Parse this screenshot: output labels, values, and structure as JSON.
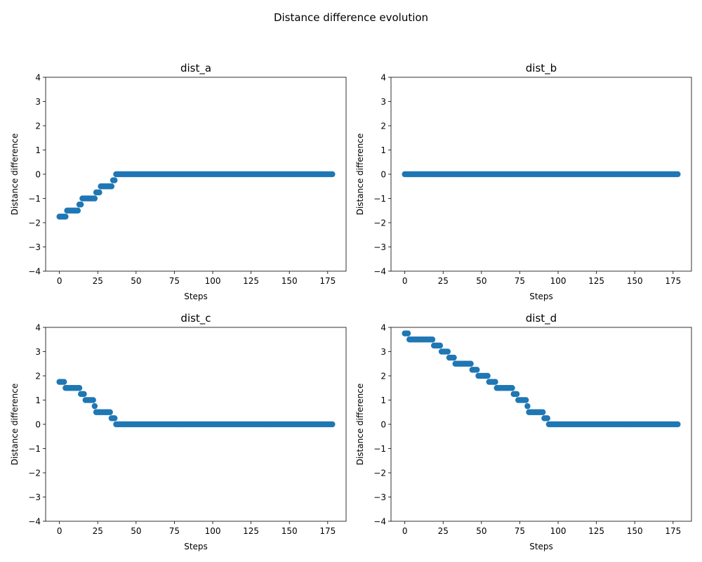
{
  "figure": {
    "suptitle": "Distance difference evolution"
  },
  "style": {
    "marker_color": "#1f77b4",
    "axes_color": "#000000",
    "background": "#ffffff"
  },
  "chart_data": [
    {
      "type": "scatter",
      "title": "dist_a",
      "xlabel": "Steps",
      "ylabel": "Distance difference",
      "xlim": [
        -9,
        187
      ],
      "ylim": [
        -4,
        4
      ],
      "xticks": [
        0,
        25,
        50,
        75,
        100,
        125,
        150,
        175
      ],
      "yticks": [
        -4,
        -3,
        -2,
        -1,
        0,
        1,
        2,
        3,
        4
      ],
      "grid": false,
      "x_range": [
        0,
        178
      ],
      "segments": [
        {
          "from": 0,
          "to": 4,
          "y": -1.75
        },
        {
          "from": 5,
          "to": 12,
          "y": -1.5
        },
        {
          "from": 13,
          "to": 14,
          "y": -1.25
        },
        {
          "from": 15,
          "to": 23,
          "y": -1.0
        },
        {
          "from": 24,
          "to": 26,
          "y": -0.75
        },
        {
          "from": 27,
          "to": 34,
          "y": -0.5
        },
        {
          "from": 35,
          "to": 36,
          "y": -0.25
        },
        {
          "from": 37,
          "to": 178,
          "y": 0.0
        }
      ]
    },
    {
      "type": "scatter",
      "title": "dist_b",
      "xlabel": "Steps",
      "ylabel": "Distance difference",
      "xlim": [
        -9,
        187
      ],
      "ylim": [
        -4,
        4
      ],
      "xticks": [
        0,
        25,
        50,
        75,
        100,
        125,
        150,
        175
      ],
      "yticks": [
        -4,
        -3,
        -2,
        -1,
        0,
        1,
        2,
        3,
        4
      ],
      "grid": false,
      "x_range": [
        0,
        178
      ],
      "segments": [
        {
          "from": 0,
          "to": 178,
          "y": 0.0
        }
      ]
    },
    {
      "type": "scatter",
      "title": "dist_c",
      "xlabel": "Steps",
      "ylabel": "Distance difference",
      "xlim": [
        -9,
        187
      ],
      "ylim": [
        -4,
        4
      ],
      "xticks": [
        0,
        25,
        50,
        75,
        100,
        125,
        150,
        175
      ],
      "yticks": [
        -4,
        -3,
        -2,
        -1,
        0,
        1,
        2,
        3,
        4
      ],
      "grid": false,
      "x_range": [
        0,
        178
      ],
      "segments": [
        {
          "from": 0,
          "to": 3,
          "y": 1.75
        },
        {
          "from": 4,
          "to": 13,
          "y": 1.5
        },
        {
          "from": 14,
          "to": 16,
          "y": 1.25
        },
        {
          "from": 17,
          "to": 22,
          "y": 1.0
        },
        {
          "from": 23,
          "to": 23,
          "y": 0.75
        },
        {
          "from": 24,
          "to": 33,
          "y": 0.5
        },
        {
          "from": 34,
          "to": 36,
          "y": 0.25
        },
        {
          "from": 37,
          "to": 178,
          "y": 0.0
        }
      ]
    },
    {
      "type": "scatter",
      "title": "dist_d",
      "xlabel": "Steps",
      "ylabel": "Distance difference",
      "xlim": [
        -9,
        187
      ],
      "ylim": [
        -4,
        4
      ],
      "xticks": [
        0,
        25,
        50,
        75,
        100,
        125,
        150,
        175
      ],
      "yticks": [
        -4,
        -3,
        -2,
        -1,
        0,
        1,
        2,
        3,
        4
      ],
      "grid": false,
      "x_range": [
        0,
        178
      ],
      "segments": [
        {
          "from": 0,
          "to": 2,
          "y": 3.75
        },
        {
          "from": 3,
          "to": 18,
          "y": 3.5
        },
        {
          "from": 19,
          "to": 23,
          "y": 3.25
        },
        {
          "from": 24,
          "to": 28,
          "y": 3.0
        },
        {
          "from": 29,
          "to": 32,
          "y": 2.75
        },
        {
          "from": 33,
          "to": 43,
          "y": 2.5
        },
        {
          "from": 44,
          "to": 47,
          "y": 2.25
        },
        {
          "from": 48,
          "to": 54,
          "y": 2.0
        },
        {
          "from": 55,
          "to": 59,
          "y": 1.75
        },
        {
          "from": 60,
          "to": 70,
          "y": 1.5
        },
        {
          "from": 71,
          "to": 73,
          "y": 1.25
        },
        {
          "from": 74,
          "to": 79,
          "y": 1.0
        },
        {
          "from": 80,
          "to": 80,
          "y": 0.75
        },
        {
          "from": 81,
          "to": 90,
          "y": 0.5
        },
        {
          "from": 91,
          "to": 93,
          "y": 0.25
        },
        {
          "from": 94,
          "to": 178,
          "y": 0.0
        }
      ]
    }
  ]
}
